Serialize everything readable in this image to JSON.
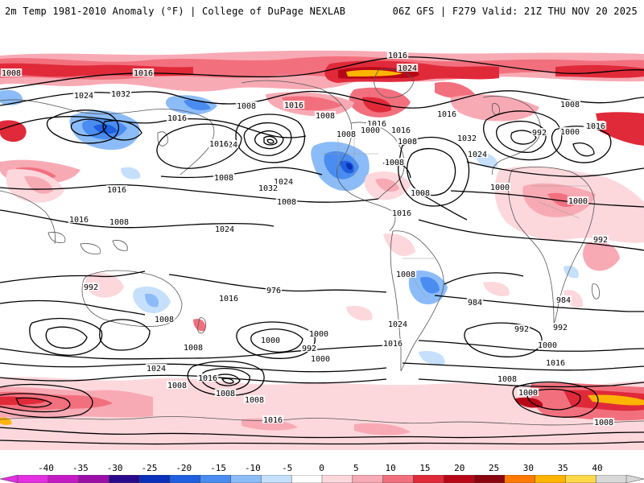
{
  "header": {
    "title": "2m Temp 1981-2010 Anomaly (°F) | College of DuPage NEXLAB",
    "run_info": "06Z GFS | F279 Valid: 21Z THU NOV 20 2025"
  },
  "legend": {
    "ticks": [
      "-40",
      "-35",
      "-30",
      "-25",
      "-20",
      "-15",
      "-10",
      "-5",
      "0",
      "5",
      "10",
      "15",
      "20",
      "25",
      "30",
      "35",
      "40"
    ],
    "colors": [
      "#e22fe2",
      "#c41bc4",
      "#9a0fa8",
      "#2a0a8c",
      "#0a2fb8",
      "#1f5fe0",
      "#4a8cf0",
      "#8cbcf8",
      "#c6e0fc",
      "#ffffff",
      "#fcd8dc",
      "#f8aab4",
      "#f2707e",
      "#e02a3a",
      "#b80818",
      "#8a0610",
      "#ff7a00",
      "#ffb400",
      "#ffd84a",
      "#d8d8d8"
    ]
  },
  "isobar_labels": [
    "1016",
    "1024",
    "1008",
    "1016",
    "1032",
    "1024",
    "1016",
    "1008",
    "1008",
    "1016",
    "1000",
    "1016",
    "1032",
    "1024",
    "1016",
    "1008",
    "992",
    "1000",
    "1016",
    "1008",
    "1024",
    "1032",
    "1024",
    "1016",
    "1008",
    "1016",
    "1016",
    "1008",
    "1008",
    "1008",
    "1016",
    "1008",
    "1000",
    "1008",
    "1016",
    "1024",
    "1016",
    "1000",
    "992",
    "1008",
    "984",
    "976",
    "984",
    "992",
    "1016",
    "1008",
    "1024",
    "1000",
    "992",
    "992",
    "1000",
    "1008",
    "1016",
    "992",
    "1000",
    "1000",
    "1016",
    "1024",
    "1016",
    "1008",
    "1008",
    "1008",
    "1016",
    "1008",
    "1000",
    "1008"
  ]
}
